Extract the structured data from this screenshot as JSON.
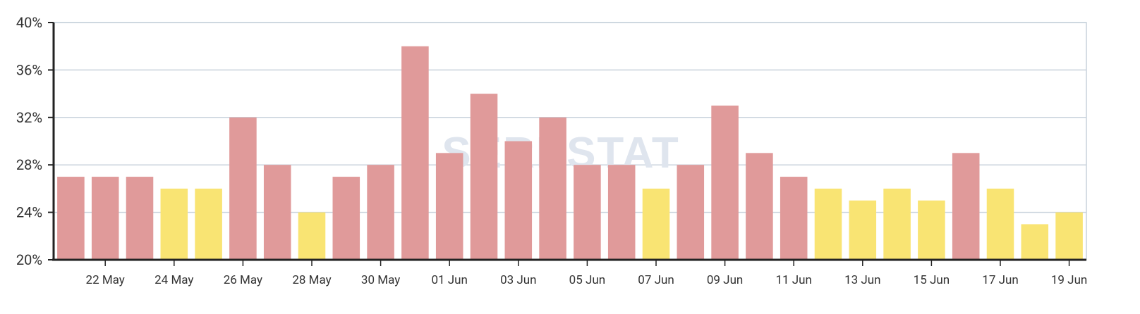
{
  "watermark": {
    "text": "SERPSTAT"
  },
  "colors": {
    "red_bar": "#e09a9a",
    "yellow_bar": "#f9e473",
    "grid": "#c8d2dc",
    "axis": "#222222",
    "frame": "#c8d2dc",
    "watermark": "#dfe5ee"
  },
  "chart_data": {
    "type": "bar",
    "title": "",
    "xlabel": "",
    "ylabel": "",
    "ylim": [
      20,
      40
    ],
    "y_ticks": [
      {
        "value": 20,
        "label": "20%"
      },
      {
        "value": 24,
        "label": "24%"
      },
      {
        "value": 28,
        "label": "28%"
      },
      {
        "value": 32,
        "label": "32%"
      },
      {
        "value": 36,
        "label": "36%"
      },
      {
        "value": 40,
        "label": "40%"
      }
    ],
    "grid": true,
    "legend": "none",
    "x_tick_labels": [
      "22 May",
      "24 May",
      "26 May",
      "28 May",
      "30 May",
      "01 Jun",
      "03 Jun",
      "05 Jun",
      "07 Jun",
      "09 Jun",
      "11 Jun",
      "13 Jun",
      "15 Jun",
      "17 Jun",
      "19 Jun"
    ],
    "bars": [
      {
        "date": "21 May",
        "value": 27,
        "color": "red"
      },
      {
        "date": "22 May",
        "value": 27,
        "color": "red"
      },
      {
        "date": "23 May",
        "value": 27,
        "color": "red"
      },
      {
        "date": "24 May",
        "value": 26,
        "color": "yellow"
      },
      {
        "date": "25 May",
        "value": 26,
        "color": "yellow"
      },
      {
        "date": "26 May",
        "value": 32,
        "color": "red"
      },
      {
        "date": "27 May",
        "value": 28,
        "color": "red"
      },
      {
        "date": "28 May",
        "value": 24,
        "color": "yellow"
      },
      {
        "date": "29 May",
        "value": 27,
        "color": "red"
      },
      {
        "date": "30 May",
        "value": 28,
        "color": "red"
      },
      {
        "date": "31 May",
        "value": 38,
        "color": "red"
      },
      {
        "date": "01 Jun",
        "value": 29,
        "color": "red"
      },
      {
        "date": "02 Jun",
        "value": 34,
        "color": "red"
      },
      {
        "date": "03 Jun",
        "value": 30,
        "color": "red"
      },
      {
        "date": "04 Jun",
        "value": 32,
        "color": "red"
      },
      {
        "date": "05 Jun",
        "value": 28,
        "color": "red"
      },
      {
        "date": "06 Jun",
        "value": 28,
        "color": "red"
      },
      {
        "date": "07 Jun",
        "value": 26,
        "color": "yellow"
      },
      {
        "date": "08 Jun",
        "value": 28,
        "color": "red"
      },
      {
        "date": "09 Jun",
        "value": 33,
        "color": "red"
      },
      {
        "date": "10 Jun",
        "value": 29,
        "color": "red"
      },
      {
        "date": "11 Jun",
        "value": 27,
        "color": "red"
      },
      {
        "date": "12 Jun",
        "value": 26,
        "color": "yellow"
      },
      {
        "date": "13 Jun",
        "value": 25,
        "color": "yellow"
      },
      {
        "date": "14 Jun",
        "value": 26,
        "color": "yellow"
      },
      {
        "date": "15 Jun",
        "value": 25,
        "color": "yellow"
      },
      {
        "date": "16 Jun",
        "value": 29,
        "color": "red"
      },
      {
        "date": "17 Jun",
        "value": 26,
        "color": "yellow"
      },
      {
        "date": "18 Jun",
        "value": 23,
        "color": "yellow"
      },
      {
        "date": "19 Jun",
        "value": 24,
        "color": "yellow"
      }
    ]
  }
}
